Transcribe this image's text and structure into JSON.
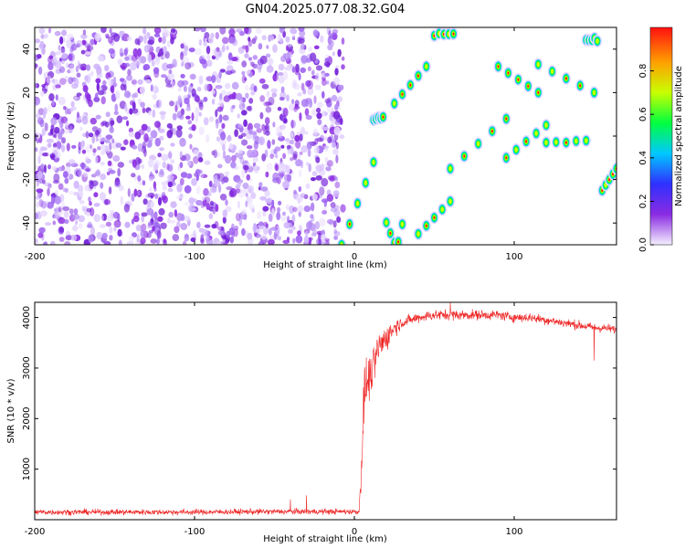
{
  "chart_data": [
    {
      "type": "heatmap",
      "title": "GN04.2025.077.08.32.G04",
      "xlabel": "Height of straight line (km)",
      "ylabel": "Frequency (Hz)",
      "xlim": [
        -200,
        164
      ],
      "ylim": [
        -50,
        50
      ],
      "x_ticks": [
        -200,
        -100,
        0,
        100
      ],
      "y_ticks": [
        -40,
        -20,
        0,
        20,
        40
      ],
      "colorbar": {
        "label": "Normalized spectral amplitude",
        "range": [
          0,
          1
        ],
        "ticks": [
          "0.0",
          "0.2",
          "0.4",
          "0.6",
          "0.8"
        ],
        "colors": [
          "#f5f0ff",
          "#8a2be2",
          "#3030ff",
          "#00c8ff",
          "#00ff40",
          "#c8ff00",
          "#ffa000",
          "#ff1010"
        ]
      },
      "noise_region_x": [
        -200,
        -7
      ],
      "signal_bands": [
        {
          "x": [
            -8,
            12
          ],
          "y": [
            -50,
            -12
          ],
          "slope": "rising"
        },
        {
          "x": [
            20,
            30
          ],
          "y": [
            -50,
            -38
          ],
          "slope": "vertical"
        },
        {
          "x": [
            40,
            60
          ],
          "y": [
            -45,
            -30
          ],
          "slope": "rising"
        },
        {
          "x": [
            60,
            95
          ],
          "y": [
            -15,
            8
          ],
          "slope": "rising"
        },
        {
          "x": [
            95,
            120
          ],
          "y": [
            -10,
            5
          ],
          "slope": "rising"
        },
        {
          "x": [
            120,
            145
          ],
          "y": [
            -5,
            0
          ],
          "slope": "flat"
        },
        {
          "x": [
            155,
            164
          ],
          "y": [
            -25,
            -15
          ],
          "slope": "rising"
        },
        {
          "x": [
            25,
            45
          ],
          "y": [
            15,
            32
          ],
          "slope": "rising"
        },
        {
          "x": [
            90,
            115
          ],
          "y": [
            20,
            32
          ],
          "slope": "falling"
        },
        {
          "x": [
            115,
            150
          ],
          "y": [
            20,
            33
          ],
          "slope": "falling"
        },
        {
          "x": [
            50,
            62
          ],
          "y": [
            44,
            50
          ],
          "slope": "flat"
        },
        {
          "x": [
            145,
            152
          ],
          "y": [
            40,
            48
          ],
          "slope": "flat"
        },
        {
          "x": [
            12,
            18
          ],
          "y": [
            5,
            12
          ],
          "slope": "flat"
        }
      ]
    },
    {
      "type": "line",
      "xlabel": "Height of straight line (km)",
      "ylabel": "SNR (10 * v/v)",
      "xlim": [
        -200,
        164
      ],
      "ylim": [
        0,
        4300
      ],
      "x_ticks": [
        -200,
        -100,
        0,
        100
      ],
      "y_ticks": [
        1000,
        2000,
        3000,
        4000
      ],
      "color": "#ee2222",
      "series": [
        {
          "x": [
            -200,
            -150,
            -100,
            -50,
            -10,
            3,
            5,
            6,
            8,
            12,
            15,
            20,
            25,
            30,
            40,
            50,
            60,
            70,
            80,
            90,
            100,
            110,
            120,
            130,
            140,
            150,
            160,
            164
          ],
          "y": [
            150,
            150,
            150,
            160,
            160,
            160,
            1500,
            2600,
            2700,
            3000,
            3400,
            3600,
            3800,
            3900,
            4000,
            4050,
            4050,
            4050,
            4050,
            4050,
            4000,
            4000,
            3950,
            3900,
            3850,
            3800,
            3780,
            3750
          ],
          "noise": [
            [
              -200,
              80
            ],
            [
              3,
              80
            ],
            [
              5,
              700
            ],
            [
              30,
              150
            ],
            [
              164,
              120
            ]
          ],
          "spikes": [
            [
              -40,
              400
            ],
            [
              -30,
              480
            ],
            [
              6,
              1900
            ],
            [
              60,
              4300
            ],
            [
              150,
              3150
            ]
          ]
        }
      ]
    }
  ]
}
